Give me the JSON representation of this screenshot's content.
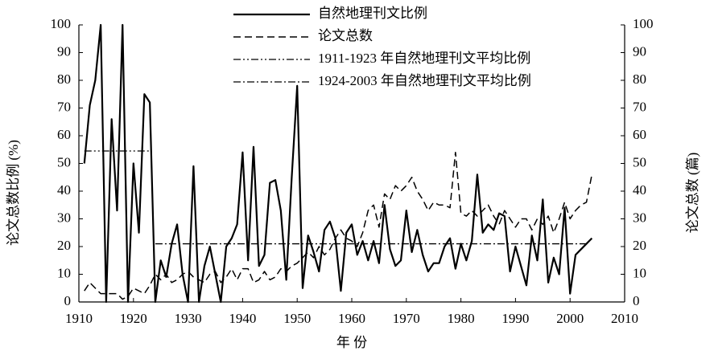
{
  "chart_data": {
    "type": "line",
    "xlabel": "年 份",
    "ylabel": "论文总数比例 (%)",
    "y2label": "论文总数 (篇)",
    "legend": "top",
    "xlim": [
      1910,
      2010
    ],
    "xticks": [
      1910,
      1920,
      1930,
      1940,
      1950,
      1960,
      1970,
      1980,
      1990,
      2000,
      2010
    ],
    "ylim": [
      0,
      100
    ],
    "yticks": [
      0,
      10,
      20,
      30,
      40,
      50,
      60,
      70,
      80,
      90,
      100
    ],
    "y2lim": [
      0,
      100
    ],
    "y2ticks": [
      0,
      10,
      20,
      30,
      40,
      50,
      60,
      70,
      80,
      90,
      100
    ],
    "x": [
      1911,
      1912,
      1913,
      1914,
      1915,
      1916,
      1917,
      1918,
      1919,
      1920,
      1921,
      1922,
      1923,
      1924,
      1925,
      1926,
      1927,
      1928,
      1929,
      1930,
      1931,
      1932,
      1933,
      1934,
      1935,
      1936,
      1937,
      1938,
      1939,
      1940,
      1941,
      1942,
      1943,
      1944,
      1945,
      1946,
      1947,
      1948,
      1949,
      1950,
      1951,
      1952,
      1953,
      1954,
      1955,
      1956,
      1957,
      1958,
      1959,
      1960,
      1961,
      1962,
      1963,
      1964,
      1965,
      1966,
      1967,
      1968,
      1969,
      1970,
      1971,
      1972,
      1973,
      1974,
      1975,
      1976,
      1977,
      1978,
      1979,
      1980,
      1981,
      1982,
      1983,
      1984,
      1985,
      1986,
      1987,
      1988,
      1989,
      1990,
      1991,
      1992,
      1993,
      1994,
      1995,
      1996,
      1997,
      1998,
      1999,
      2000,
      2001,
      2002,
      2003,
      2004
    ],
    "series": [
      {
        "name": "自然地理刊文比例",
        "color": "#000000",
        "style": "solid",
        "values": [
          50,
          71,
          80,
          100,
          0,
          66,
          33,
          100,
          0,
          50,
          25,
          75,
          72,
          0,
          15,
          9,
          21,
          28,
          10,
          0,
          49,
          0,
          13,
          20,
          10,
          0,
          20,
          23,
          28,
          54,
          15,
          56,
          13,
          17,
          43,
          44,
          33,
          8,
          45,
          78,
          5,
          24,
          18,
          11,
          26,
          29,
          23,
          4,
          25,
          28,
          17,
          22,
          15,
          22,
          14,
          35,
          19,
          13,
          15,
          33,
          18,
          26,
          17,
          11,
          14,
          14,
          20,
          23,
          12,
          21,
          15,
          22,
          46,
          25,
          28,
          26,
          32,
          31,
          11,
          20,
          13,
          6,
          24,
          15,
          37,
          7,
          16,
          10,
          34,
          3,
          17,
          19,
          21,
          23
        ]
      },
      {
        "name": "论文总数",
        "color": "#000000",
        "style": "dashed",
        "axis": "y2",
        "values": [
          4,
          7,
          5,
          3,
          3,
          3,
          3,
          1,
          2,
          5,
          4,
          3,
          6,
          10,
          8,
          10,
          7,
          8,
          10,
          11,
          9,
          8,
          7,
          10,
          11,
          7,
          9,
          12,
          8,
          12,
          12,
          7,
          8,
          11,
          8,
          9,
          12,
          11,
          13,
          14,
          16,
          18,
          16,
          20,
          17,
          19,
          23,
          26,
          23,
          22,
          20,
          25,
          33,
          35,
          27,
          39,
          37,
          42,
          40,
          42,
          45,
          40,
          37,
          33,
          36,
          35,
          35,
          34,
          54,
          32,
          31,
          33,
          31,
          33,
          35,
          31,
          28,
          33,
          30,
          27,
          30,
          30,
          26,
          30,
          28,
          31,
          25,
          30,
          36,
          30,
          33,
          35,
          36,
          46
        ]
      },
      {
        "name": "1911-1923 年自然地理刊文平均比例",
        "color": "#000000",
        "style": "dashdotdot",
        "x": [
          1911,
          1923
        ],
        "values": [
          54.5,
          54.5
        ]
      },
      {
        "name": "1924-2003 年自然地理刊文平均比例",
        "color": "#000000",
        "style": "dashdot",
        "x": [
          1924,
          2003
        ],
        "values": [
          21,
          21
        ]
      }
    ]
  }
}
